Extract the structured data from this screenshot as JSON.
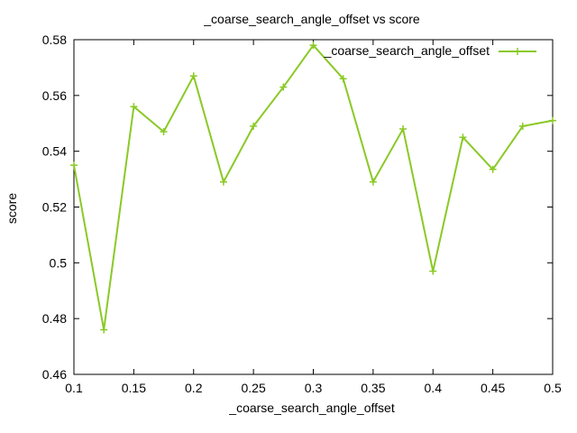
{
  "chart_data": {
    "type": "line",
    "title": "_coarse_search_angle_offset vs score",
    "xlabel": "_coarse_search_angle_offset",
    "ylabel": "score",
    "xlim": [
      0.1,
      0.5
    ],
    "ylim": [
      0.46,
      0.58
    ],
    "xticks": [
      0.1,
      0.15,
      0.2,
      0.25,
      0.3,
      0.35,
      0.4,
      0.45,
      0.5
    ],
    "xtick_labels": [
      "0.1",
      "0.15",
      "0.2",
      "0.25",
      "0.3",
      "0.35",
      "0.4",
      "0.45",
      "0.5"
    ],
    "yticks": [
      0.46,
      0.48,
      0.5,
      0.52,
      0.54,
      0.56,
      0.58
    ],
    "ytick_labels": [
      "0.46",
      "0.48",
      "0.5",
      "0.52",
      "0.54",
      "0.56",
      "0.58"
    ],
    "legend_position": "top-right",
    "series": [
      {
        "name": "_coarse_search_angle_offset",
        "color": "#8ac926",
        "marker": "plus",
        "x": [
          0.1,
          0.125,
          0.15,
          0.175,
          0.2,
          0.225,
          0.25,
          0.275,
          0.3,
          0.325,
          0.35,
          0.375,
          0.4,
          0.425,
          0.45,
          0.475,
          0.5
        ],
        "y": [
          0.535,
          0.476,
          0.556,
          0.547,
          0.567,
          0.529,
          0.549,
          0.563,
          0.578,
          0.566,
          0.529,
          0.548,
          0.497,
          0.545,
          0.5335,
          0.549,
          0.551
        ]
      }
    ]
  }
}
